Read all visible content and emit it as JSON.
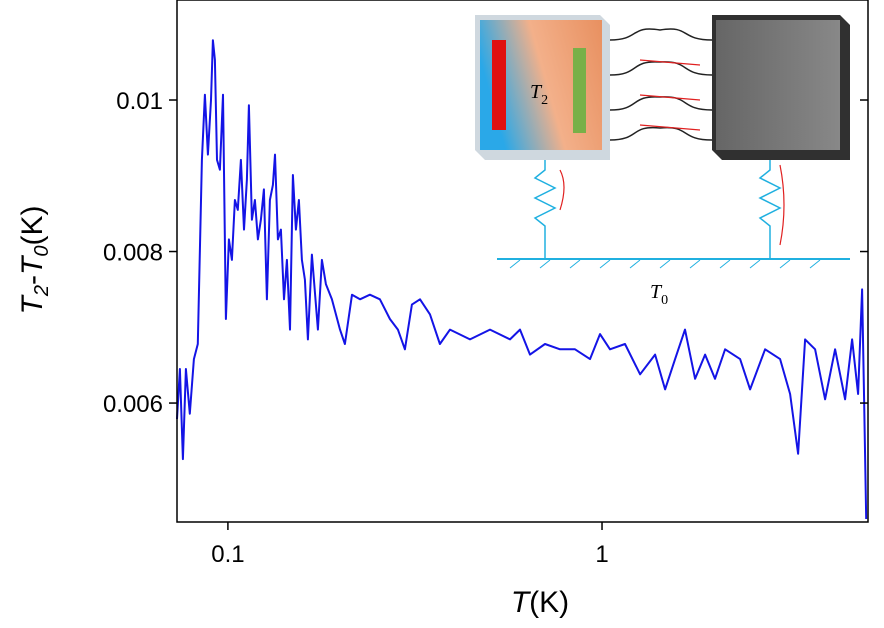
{
  "chart_data": {
    "type": "line",
    "xlog": true,
    "xlabel": [
      "T",
      "(K)"
    ],
    "ylabel": [
      "T",
      "2",
      "-",
      "T",
      "0",
      "(K)"
    ],
    "xlim": [
      0.0731,
      5.14
    ],
    "ylim": [
      0.00443,
      0.01132
    ],
    "xticks": [
      0.1,
      1
    ],
    "yticks": [
      0.006,
      0.008,
      0.01
    ],
    "inset_labels": [
      {
        "base": "T",
        "sub": "2"
      },
      {
        "base": "T",
        "sub": "0"
      }
    ],
    "series": [
      {
        "color": "#1414e6",
        "x": [
          0.0731,
          0.0744,
          0.0758,
          0.0772,
          0.0791,
          0.0811,
          0.0831,
          0.0852,
          0.0868,
          0.0884,
          0.0901,
          0.0912,
          0.0923,
          0.0935,
          0.0952,
          0.097,
          0.0988,
          0.1006,
          0.1025,
          0.1044,
          0.1063,
          0.1083,
          0.1104,
          0.1124,
          0.1138,
          0.1159,
          0.1181,
          0.1203,
          0.1225,
          0.1248,
          0.1271,
          0.1295,
          0.1319,
          0.1336,
          0.136,
          0.1386,
          0.1412,
          0.1438,
          0.1465,
          0.1492,
          0.152,
          0.1548,
          0.1577,
          0.1606,
          0.1636,
          0.1677,
          0.174,
          0.1783,
          0.1828,
          0.1897,
          0.1993,
          0.2055,
          0.2146,
          0.2254,
          0.2397,
          0.2548,
          0.271,
          0.2847,
          0.2973,
          0.3104,
          0.3261,
          0.3468,
          0.3687,
          0.3923,
          0.4437,
          0.5018,
          0.5675,
          0.6035,
          0.6418,
          0.704,
          0.772,
          0.8467,
          0.9288,
          0.9878,
          1.0505,
          1.152,
          1.264,
          1.386,
          1.474,
          1.568,
          1.667,
          1.773,
          1.886,
          2.005,
          2.133,
          2.339,
          2.488,
          2.728,
          2.992,
          3.182,
          3.343,
          3.49,
          3.712,
          3.947,
          4.198,
          4.465,
          4.661,
          4.836,
          4.958,
          5.019,
          5.082
        ],
        "values": [
          0.00579,
          0.00645,
          0.00526,
          0.00645,
          0.00586,
          0.00658,
          0.00678,
          0.00921,
          0.01007,
          0.00928,
          0.01,
          0.01079,
          0.01053,
          0.00921,
          0.00908,
          0.01007,
          0.00711,
          0.00816,
          0.00789,
          0.00868,
          0.00855,
          0.00921,
          0.00829,
          0.00895,
          0.00993,
          0.00842,
          0.00868,
          0.00816,
          0.00842,
          0.00882,
          0.00737,
          0.00868,
          0.00888,
          0.00928,
          0.00816,
          0.00829,
          0.00737,
          0.00789,
          0.00697,
          0.00901,
          0.00829,
          0.00868,
          0.00789,
          0.00763,
          0.00684,
          0.00796,
          0.00697,
          0.00789,
          0.00757,
          0.00737,
          0.00697,
          0.00678,
          0.00743,
          0.00737,
          0.00743,
          0.00737,
          0.00711,
          0.00697,
          0.00671,
          0.0073,
          0.00737,
          0.00717,
          0.00678,
          0.00697,
          0.00684,
          0.00697,
          0.00684,
          0.00697,
          0.00664,
          0.00678,
          0.00671,
          0.00671,
          0.00658,
          0.00691,
          0.00671,
          0.00678,
          0.00638,
          0.00664,
          0.00618,
          0.00658,
          0.00697,
          0.00632,
          0.00664,
          0.00632,
          0.00671,
          0.00658,
          0.00618,
          0.00671,
          0.00658,
          0.00612,
          0.00533,
          0.00684,
          0.00671,
          0.00605,
          0.00671,
          0.00605,
          0.00684,
          0.00612,
          0.0075,
          0.00605,
          0.00447
        ]
      }
    ]
  }
}
